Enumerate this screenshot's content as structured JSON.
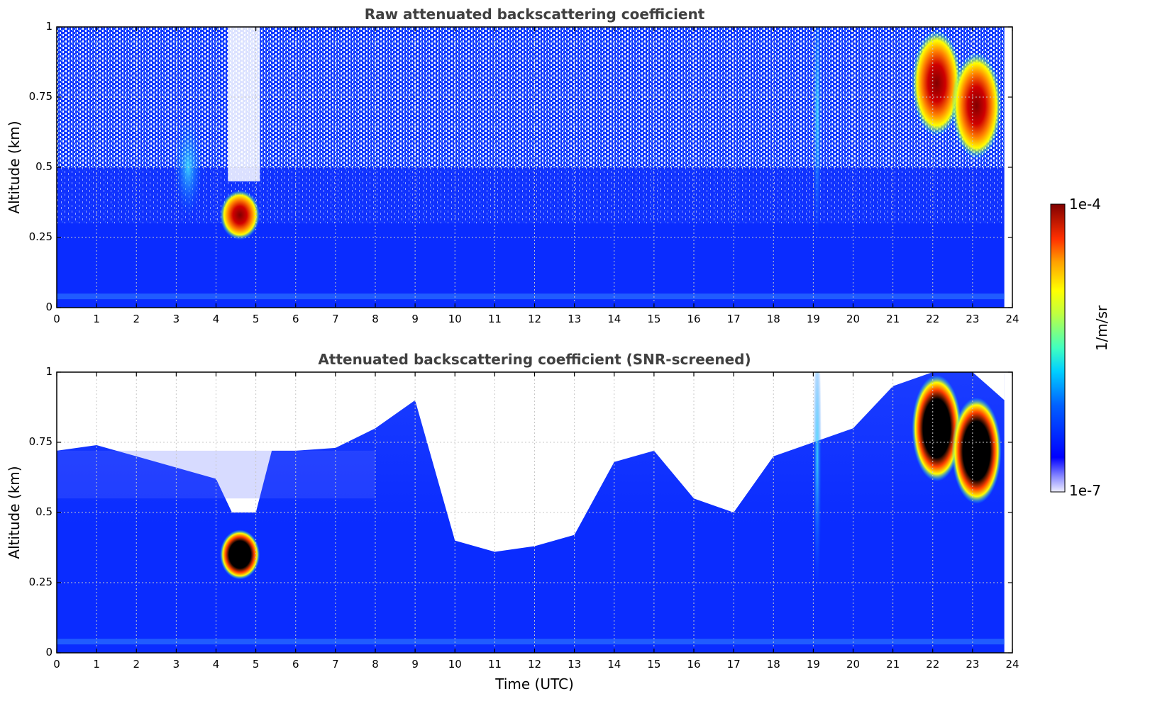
{
  "chart_data": [
    {
      "type": "heatmap",
      "title": "Raw attenuated backscattering coefficient",
      "xlabel": "",
      "ylabel": "Altitude (km)",
      "xlim": [
        0,
        24
      ],
      "ylim": [
        0,
        1
      ],
      "x_ticks": [
        "0",
        "1",
        "2",
        "3",
        "4",
        "5",
        "6",
        "7",
        "8",
        "9",
        "10",
        "11",
        "12",
        "13",
        "14",
        "15",
        "16",
        "17",
        "18",
        "19",
        "20",
        "21",
        "22",
        "23",
        "24"
      ],
      "y_ticks": [
        "0",
        "0.25",
        "0.5",
        "0.75",
        "1"
      ],
      "grid": true,
      "data_extent_hours": [
        0,
        23.8
      ],
      "features": [
        {
          "time_utc": 4.6,
          "altitude_km": 0.33,
          "level": "high"
        },
        {
          "time_utc": 3.3,
          "altitude_km": 0.5,
          "level": "medium"
        },
        {
          "time_utc": 19.1,
          "altitude_km": 0.7,
          "level": "medium"
        },
        {
          "time_utc": 22.1,
          "altitude_km": 0.8,
          "level": "high"
        },
        {
          "time_utc": 23.1,
          "altitude_km": 0.72,
          "level": "high"
        }
      ]
    },
    {
      "type": "heatmap",
      "title": "Attenuated backscattering coefficient (SNR-screened)",
      "xlabel": "Time (UTC)",
      "ylabel": "Altitude (km)",
      "xlim": [
        0,
        24
      ],
      "ylim": [
        0,
        1
      ],
      "x_ticks": [
        "0",
        "1",
        "2",
        "3",
        "4",
        "5",
        "6",
        "7",
        "8",
        "9",
        "10",
        "11",
        "12",
        "13",
        "14",
        "15",
        "16",
        "17",
        "18",
        "19",
        "20",
        "21",
        "22",
        "23",
        "24"
      ],
      "y_ticks": [
        "0",
        "0.25",
        "0.5",
        "0.75",
        "1"
      ],
      "grid": true,
      "data_extent_hours": [
        0,
        23.8
      ],
      "screened_top_profile_km": [
        [
          0,
          0.72
        ],
        [
          1,
          0.74
        ],
        [
          2,
          0.7
        ],
        [
          3,
          0.66
        ],
        [
          4,
          0.62
        ],
        [
          4.4,
          0.5
        ],
        [
          5,
          0.5
        ],
        [
          5.4,
          0.72
        ],
        [
          6,
          0.72
        ],
        [
          7,
          0.73
        ],
        [
          8,
          0.8
        ],
        [
          9,
          0.9
        ],
        [
          9.6,
          0.6
        ],
        [
          10,
          0.4
        ],
        [
          11,
          0.36
        ],
        [
          12,
          0.38
        ],
        [
          13,
          0.42
        ],
        [
          14,
          0.68
        ],
        [
          15,
          0.72
        ],
        [
          16,
          0.55
        ],
        [
          17,
          0.5
        ],
        [
          18,
          0.7
        ],
        [
          19,
          0.75
        ],
        [
          20,
          0.8
        ],
        [
          21,
          0.95
        ],
        [
          22,
          1.0
        ],
        [
          23,
          1.0
        ],
        [
          23.8,
          0.9
        ]
      ],
      "features": [
        {
          "time_utc": 4.6,
          "altitude_km": 0.35,
          "level": "saturated"
        },
        {
          "time_utc": 19.1,
          "altitude_km": 0.7,
          "level": "medium"
        },
        {
          "time_utc": 22.1,
          "altitude_km": 0.8,
          "level": "saturated"
        },
        {
          "time_utc": 23.1,
          "altitude_km": 0.72,
          "level": "saturated"
        }
      ]
    }
  ],
  "colorbar": {
    "label": "1/m/sr",
    "max_label": "1e-4",
    "min_label": "1e-7",
    "scale": "log",
    "range": [
      1e-07,
      0.0001
    ],
    "colormap": "jet"
  }
}
